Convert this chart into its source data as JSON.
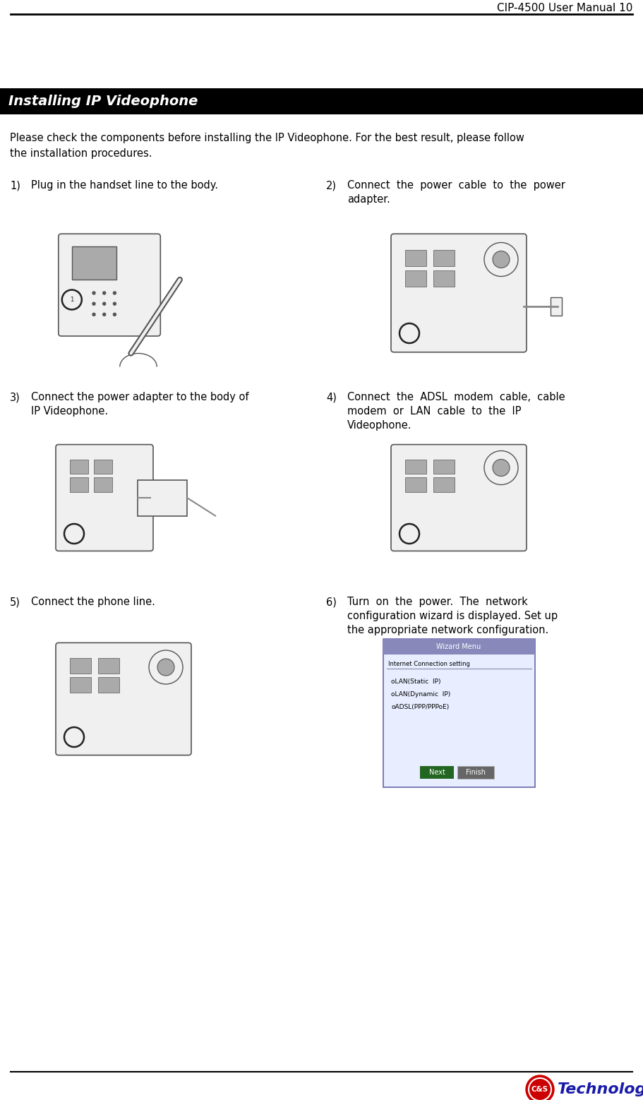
{
  "page_title": "CIP-4500 User Manual 10",
  "section_title": "Installing IP Videophone",
  "intro_line1": "Please check the components before installing the IP Videophone. For the best result, please follow",
  "intro_line2": "the installation procedures.",
  "step1_num": "1)",
  "step1_text": "Plug in the handset line to the body.",
  "step2_num": "2)",
  "step2_text_l1": "Connect  the  power  cable  to  the  power",
  "step2_text_l2": "adapter.",
  "step3_num": "3)",
  "step3_text_l1": "Connect the power adapter to the body of",
  "step3_text_l2": "IP Videophone.",
  "step4_num": "4)",
  "step4_text_l1": "Connect  the  ADSL  modem  cable,  cable",
  "step4_text_l2": "modem  or  LAN  cable  to  the  IP",
  "step4_text_l3": "Videophone.",
  "step5_num": "5)",
  "step5_text": "Connect the phone line.",
  "step6_num": "6)",
  "step6_text_l1": "Turn  on  the  power.  The  network",
  "step6_text_l2": "configuration wizard is displayed. Set up",
  "step6_text_l3": "the appropriate network configuration.",
  "wizard_title": "Wizard Menu",
  "wizard_sub": "Internet Connection setting",
  "wizard_opt1": "oLAN(Static  IP)",
  "wizard_opt2": "oLAN(Dynamic  IP)",
  "wizard_opt3": "oADSL(PPP/PPPoE)",
  "wizard_btn1": "Next",
  "wizard_btn2": "Finish",
  "background_color": "#ffffff",
  "header_line_color": "#000000",
  "section_bg_color": "#000000",
  "section_text_color": "#ffffff",
  "body_text_color": "#000000",
  "logo_text": "Technology",
  "logo_circle_color": "#cc0000",
  "logo_text_color": "#1a1aaa",
  "page_title_font": 11,
  "section_font": 14,
  "body_font": 10.5,
  "step_label_font": 10.5,
  "wizard_inner_bg": "#e8eeff",
  "wizard_titlebar_bg": "#8888bb",
  "wizard_btn1_bg": "#226622",
  "wizard_btn2_bg": "#666666",
  "device_outline": "#555555",
  "device_fill": "#f0f0f0",
  "device_dark": "#aaaaaa",
  "sketch_color": "#888888"
}
